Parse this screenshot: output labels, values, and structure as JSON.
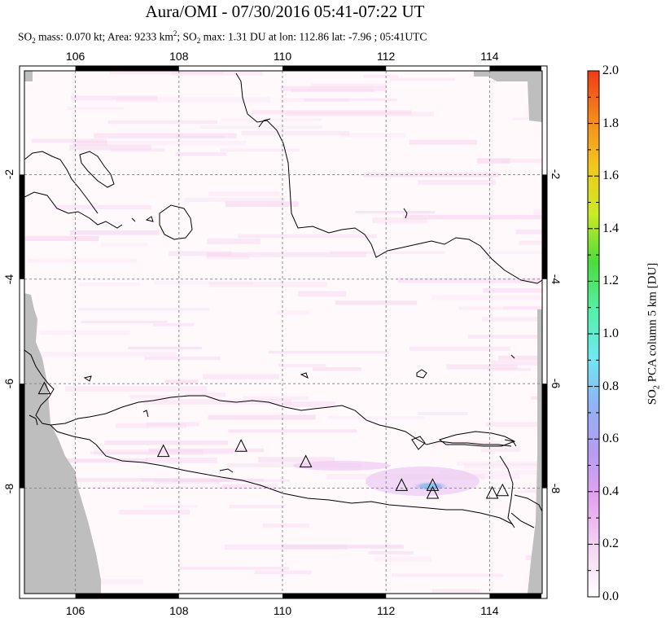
{
  "header": {
    "title": "Aura/OMI - 07/30/2016 05:41-07:22 UT",
    "subtitle": {
      "so2_prefix": "SO",
      "so2_sub": "2",
      "mass_text": " mass: 0.070 kt; Area: 9233 km",
      "area_sup": "2",
      "max_prefix": "; SO",
      "max_sub": "2",
      "max_text": " max: 1.31 DU at lon: 112.86 lat: -7.96 ; 05:41UTC"
    }
  },
  "map": {
    "lon_range": [
      105,
      115
    ],
    "lat_range": [
      -10,
      0
    ],
    "lon_ticks": [
      "106",
      "108",
      "110",
      "112",
      "114"
    ],
    "lat_ticks": [
      "-2",
      "-4",
      "-6",
      "-8"
    ],
    "lon_tick_values": [
      106,
      108,
      110,
      112,
      114
    ],
    "lat_tick_values": [
      -2,
      -4,
      -6,
      -8
    ],
    "no_data_color": "#bebebe",
    "volcanoes": [
      {
        "lon": 105.4,
        "lat": -6.1
      },
      {
        "lon": 107.7,
        "lat": -7.3
      },
      {
        "lon": 109.2,
        "lat": -7.2
      },
      {
        "lon": 110.45,
        "lat": -7.5
      },
      {
        "lon": 112.3,
        "lat": -7.95
      },
      {
        "lon": 112.9,
        "lat": -7.95
      },
      {
        "lon": 112.9,
        "lat": -8.1
      },
      {
        "lon": 114.05,
        "lat": -8.1
      },
      {
        "lon": 114.25,
        "lat": -8.05
      }
    ],
    "so2_plume": {
      "lon": 112.86,
      "lat": -7.96,
      "value_du": 1.31
    }
  },
  "colorbar": {
    "title_prefix": "SO",
    "title_sub": "2",
    "title_suffix": " PCA column 5 km [DU]",
    "min": 0.0,
    "max": 2.0,
    "labels": [
      "0.0",
      "0.2",
      "0.4",
      "0.6",
      "0.8",
      "1.0",
      "1.2",
      "1.4",
      "1.6",
      "1.8",
      "2.0"
    ],
    "label_values": [
      0,
      0.2,
      0.4,
      0.6,
      0.8,
      1.0,
      1.2,
      1.4,
      1.6,
      1.8,
      2.0
    ],
    "colors": [
      "#ffffff",
      "#f5d6f3",
      "#e6a4f0",
      "#b79cf2",
      "#8fb3f5",
      "#6fe8f3",
      "#55f0a8",
      "#4cdc3d",
      "#c8ec22",
      "#f3c81d",
      "#f48a1b",
      "#ef3a17"
    ]
  }
}
